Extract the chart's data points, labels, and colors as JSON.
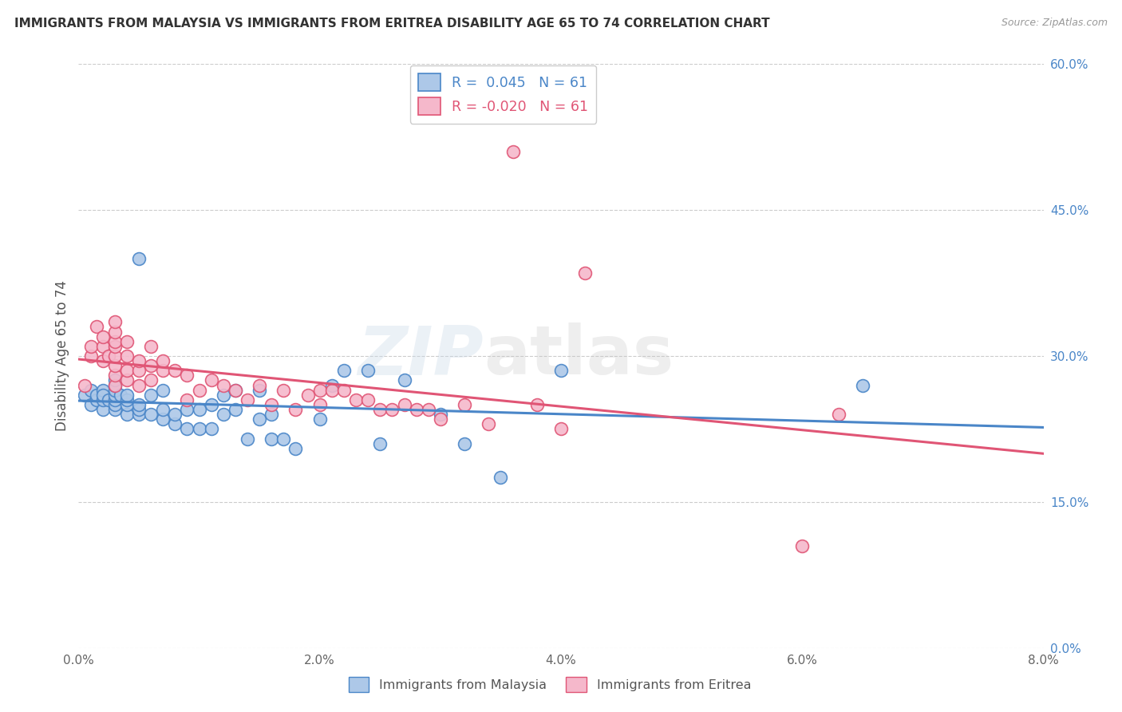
{
  "title": "IMMIGRANTS FROM MALAYSIA VS IMMIGRANTS FROM ERITREA DISABILITY AGE 65 TO 74 CORRELATION CHART",
  "source": "Source: ZipAtlas.com",
  "ylabel": "Disability Age 65 to 74",
  "x_label_malaysia": "Immigrants from Malaysia",
  "x_label_eritrea": "Immigrants from Eritrea",
  "xlim": [
    0.0,
    0.08
  ],
  "ylim": [
    0.0,
    0.6
  ],
  "x_ticks": [
    0.0,
    0.01,
    0.02,
    0.03,
    0.04,
    0.05,
    0.06,
    0.07,
    0.08
  ],
  "x_tick_labels": [
    "0.0%",
    "",
    "2.0%",
    "",
    "4.0%",
    "",
    "6.0%",
    "",
    "8.0%"
  ],
  "y_ticks_right": [
    0.0,
    0.15,
    0.3,
    0.45,
    0.6
  ],
  "y_tick_labels_right": [
    "0.0%",
    "15.0%",
    "30.0%",
    "45.0%",
    "60.0%"
  ],
  "malaysia_R": 0.045,
  "malaysia_N": 61,
  "eritrea_R": -0.02,
  "eritrea_N": 61,
  "malaysia_color": "#adc8e8",
  "eritrea_color": "#f5b8cb",
  "malaysia_line_color": "#4a86c8",
  "eritrea_line_color": "#e05575",
  "watermark_zip": "ZIP",
  "watermark_atlas": "atlas",
  "malaysia_scatter_x": [
    0.0005,
    0.001,
    0.001,
    0.0015,
    0.0015,
    0.002,
    0.002,
    0.002,
    0.002,
    0.0025,
    0.003,
    0.003,
    0.003,
    0.003,
    0.003,
    0.003,
    0.003,
    0.0035,
    0.004,
    0.004,
    0.004,
    0.004,
    0.005,
    0.005,
    0.005,
    0.005,
    0.006,
    0.006,
    0.007,
    0.007,
    0.007,
    0.008,
    0.008,
    0.009,
    0.009,
    0.01,
    0.01,
    0.011,
    0.011,
    0.012,
    0.012,
    0.013,
    0.013,
    0.014,
    0.015,
    0.015,
    0.016,
    0.016,
    0.017,
    0.018,
    0.02,
    0.021,
    0.022,
    0.024,
    0.025,
    0.027,
    0.03,
    0.032,
    0.035,
    0.04,
    0.065
  ],
  "malaysia_scatter_y": [
    0.26,
    0.25,
    0.265,
    0.255,
    0.26,
    0.245,
    0.255,
    0.265,
    0.26,
    0.255,
    0.245,
    0.25,
    0.255,
    0.26,
    0.265,
    0.27,
    0.275,
    0.26,
    0.24,
    0.25,
    0.255,
    0.26,
    0.24,
    0.245,
    0.25,
    0.4,
    0.24,
    0.26,
    0.235,
    0.245,
    0.265,
    0.23,
    0.24,
    0.225,
    0.245,
    0.225,
    0.245,
    0.225,
    0.25,
    0.24,
    0.26,
    0.245,
    0.265,
    0.215,
    0.235,
    0.265,
    0.215,
    0.24,
    0.215,
    0.205,
    0.235,
    0.27,
    0.285,
    0.285,
    0.21,
    0.275,
    0.24,
    0.21,
    0.175,
    0.285,
    0.27
  ],
  "eritrea_scatter_x": [
    0.0005,
    0.001,
    0.001,
    0.0015,
    0.002,
    0.002,
    0.002,
    0.0025,
    0.003,
    0.003,
    0.003,
    0.003,
    0.003,
    0.003,
    0.003,
    0.003,
    0.004,
    0.004,
    0.004,
    0.004,
    0.005,
    0.005,
    0.005,
    0.006,
    0.006,
    0.006,
    0.007,
    0.007,
    0.008,
    0.009,
    0.009,
    0.01,
    0.011,
    0.012,
    0.013,
    0.014,
    0.015,
    0.016,
    0.017,
    0.018,
    0.019,
    0.02,
    0.02,
    0.021,
    0.022,
    0.023,
    0.024,
    0.025,
    0.026,
    0.027,
    0.028,
    0.029,
    0.03,
    0.032,
    0.034,
    0.036,
    0.038,
    0.04,
    0.042,
    0.06,
    0.063
  ],
  "eritrea_scatter_y": [
    0.27,
    0.3,
    0.31,
    0.33,
    0.295,
    0.31,
    0.32,
    0.3,
    0.27,
    0.28,
    0.29,
    0.3,
    0.31,
    0.315,
    0.325,
    0.335,
    0.275,
    0.285,
    0.3,
    0.315,
    0.27,
    0.285,
    0.295,
    0.275,
    0.29,
    0.31,
    0.285,
    0.295,
    0.285,
    0.255,
    0.28,
    0.265,
    0.275,
    0.27,
    0.265,
    0.255,
    0.27,
    0.25,
    0.265,
    0.245,
    0.26,
    0.25,
    0.265,
    0.265,
    0.265,
    0.255,
    0.255,
    0.245,
    0.245,
    0.25,
    0.245,
    0.245,
    0.235,
    0.25,
    0.23,
    0.51,
    0.25,
    0.225,
    0.385,
    0.105,
    0.24
  ]
}
